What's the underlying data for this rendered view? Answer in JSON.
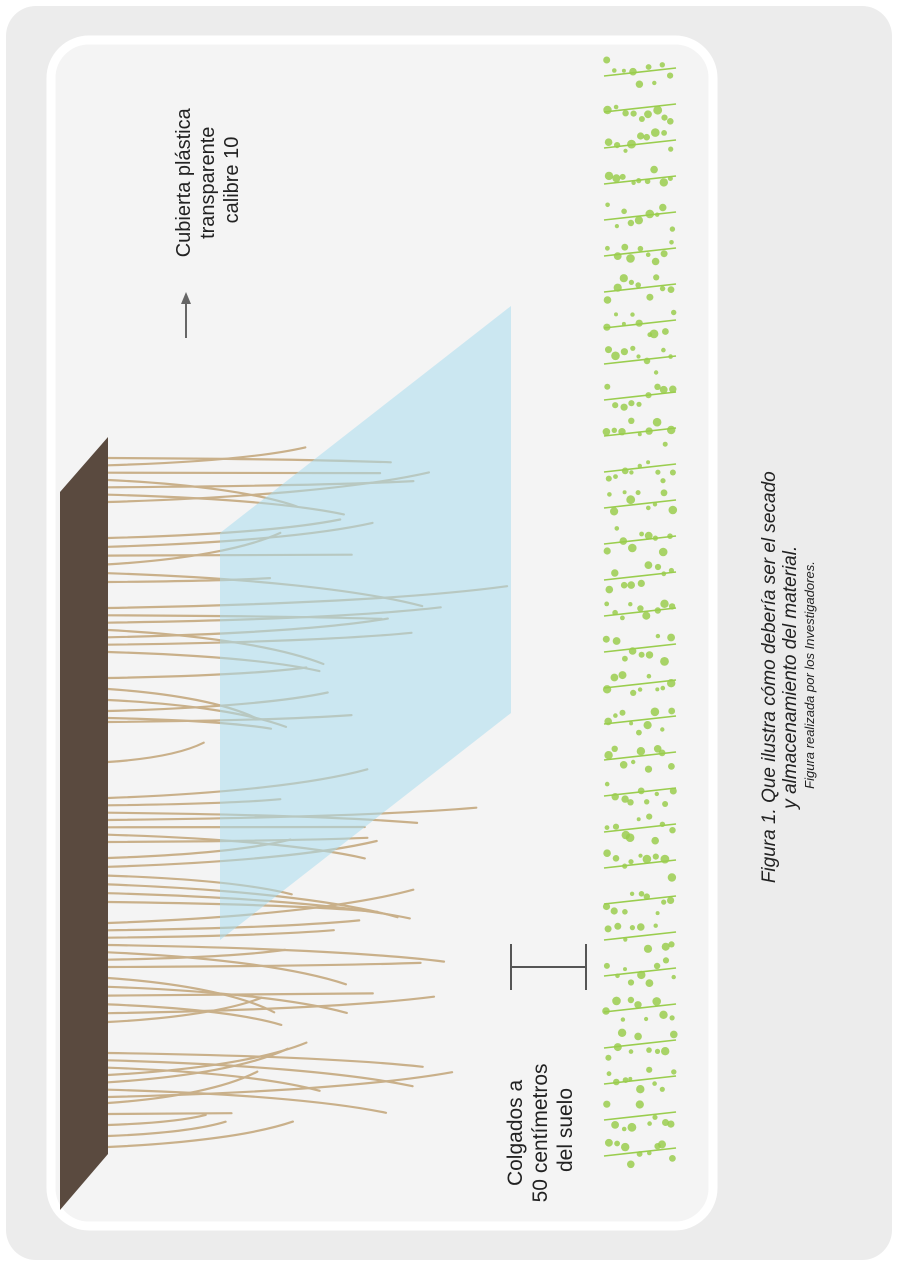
{
  "figure": {
    "label_cover": [
      "Cubierta plástica",
      "transparente",
      "calibre 10"
    ],
    "label_height": [
      "Colgados a",
      "50 centímetros",
      "del suelo"
    ],
    "caption": {
      "line1": "Figura 1. Que ilustra cómo debería ser el secado",
      "line2": "y almacenamiento del material.",
      "credit": "Figura realizada por los Investigadores."
    }
  },
  "colors": {
    "page_background": "#ececec",
    "panel_background": "#f4f4f4",
    "panel_border": "#ffffff",
    "beam": "#5a4a3f",
    "hanging_stems": "#c9b08a",
    "plastic_cover": "#a9dcef",
    "plants": "#9acd4e",
    "arrow": "#666666",
    "text": "#222222"
  },
  "icons": [
    "wooden-beam",
    "hanging-plant-stems",
    "plastic-cover-sheet",
    "green-plant-row",
    "arrow-icon",
    "height-bracket-icon"
  ]
}
